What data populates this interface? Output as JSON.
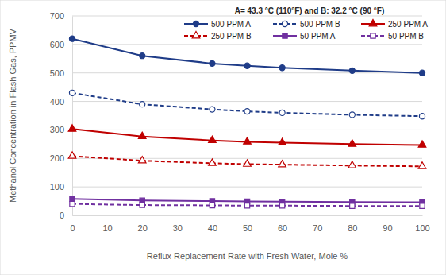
{
  "chart_data": {
    "type": "line",
    "title": "A= 43.3 °C (110°F)  and B: 32.2 °C (90 °F)",
    "x_label": "Reflux Replacement Rate with Fresh Water, Mole %",
    "y_label": "Methanol Concentration in Flash Gas, PPMV",
    "x": [
      0,
      20,
      40,
      50,
      60,
      80,
      100
    ],
    "series": [
      {
        "name": "500 PPM A",
        "color": "#1f3c88",
        "marker": "circle",
        "line_style": "solid",
        "values": [
          620,
          560,
          533,
          525,
          518,
          508,
          500
        ]
      },
      {
        "name": "500 PPM B",
        "color": "#1f3c88",
        "marker": "open-circle",
        "line_style": "dashed",
        "values": [
          430,
          390,
          372,
          365,
          360,
          353,
          348
        ]
      },
      {
        "name": "250 PPM A",
        "color": "#c00000",
        "marker": "triangle",
        "line_style": "solid",
        "values": [
          303,
          277,
          263,
          258,
          255,
          250,
          247
        ]
      },
      {
        "name": "250 PPM B",
        "color": "#c00000",
        "marker": "open-triangle",
        "line_style": "dashed",
        "values": [
          208,
          192,
          183,
          180,
          178,
          175,
          172
        ]
      },
      {
        "name": "50 PPM A",
        "color": "#7030a0",
        "marker": "square",
        "line_style": "solid",
        "values": [
          58,
          52,
          50,
          49,
          48,
          47,
          46
        ]
      },
      {
        "name": "50 PPM B",
        "color": "#7030a0",
        "marker": "open-square",
        "line_style": "dashed",
        "values": [
          40,
          36,
          35,
          34,
          34,
          33,
          33
        ]
      }
    ],
    "xlim": [
      0,
      100
    ],
    "xticks": [
      0,
      10,
      20,
      30,
      40,
      50,
      60,
      70,
      80,
      90,
      100
    ],
    "ylim": [
      0,
      700
    ],
    "yticks": [
      0,
      100,
      200,
      300,
      400,
      500,
      600,
      700
    ],
    "grid": true,
    "legend": "top-right"
  }
}
